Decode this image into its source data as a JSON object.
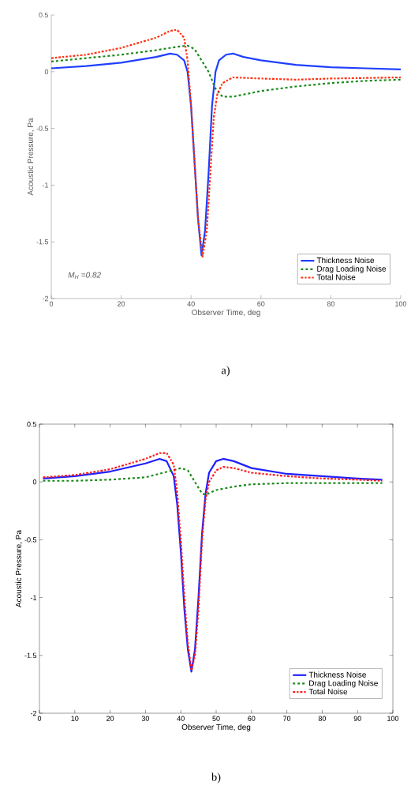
{
  "chart_data": [
    {
      "type": "line",
      "xlabel": "Observer Time, deg",
      "ylabel": "Acoustic Pressure, Pa",
      "xlim": [
        0,
        100
      ],
      "ylim": [
        -2,
        0.5
      ],
      "xticks": [
        0,
        20,
        40,
        60,
        80,
        100
      ],
      "yticks": [
        -2,
        -1.5,
        -1,
        -0.5,
        0,
        0.5
      ],
      "legend": "bottom right",
      "grid": false,
      "annotations": [
        "M$_{H}$ =0.82",
        "a)"
      ],
      "series": [
        {
          "name": "Thickness Noise",
          "color": "#1f3fff",
          "line_style": "solid",
          "x": [
            0,
            10,
            20,
            30,
            34,
            36,
            38,
            39,
            40,
            41,
            42,
            43,
            44,
            45,
            46,
            47,
            48,
            50,
            52,
            55,
            60,
            70,
            80,
            90,
            100
          ],
          "values": [
            0.03,
            0.05,
            0.08,
            0.13,
            0.16,
            0.15,
            0.1,
            0.0,
            -0.3,
            -0.8,
            -1.3,
            -1.62,
            -1.4,
            -0.9,
            -0.3,
            0.0,
            0.1,
            0.15,
            0.16,
            0.13,
            0.1,
            0.06,
            0.04,
            0.03,
            0.02
          ]
        },
        {
          "name": "Drag Loading Noise",
          "color": "#1a8a1a",
          "line_style": "dashed",
          "x": [
            0,
            10,
            20,
            30,
            36,
            39,
            41,
            43,
            45,
            47,
            49,
            52,
            60,
            70,
            80,
            90,
            100
          ],
          "values": [
            0.09,
            0.12,
            0.15,
            0.19,
            0.22,
            0.23,
            0.2,
            0.1,
            0.0,
            -0.15,
            -0.22,
            -0.22,
            -0.17,
            -0.13,
            -0.1,
            -0.08,
            -0.07
          ]
        },
        {
          "name": "Total Noise",
          "color": "#ff3010",
          "line_style": "dashdot",
          "x": [
            0,
            10,
            20,
            30,
            34,
            36,
            38,
            39,
            40,
            41,
            42,
            43.3,
            44.5,
            45.5,
            46.5,
            47.5,
            49,
            52,
            60,
            70,
            80,
            100
          ],
          "values": [
            0.12,
            0.15,
            0.21,
            0.3,
            0.36,
            0.37,
            0.3,
            0.1,
            -0.3,
            -0.8,
            -1.3,
            -1.63,
            -1.4,
            -0.9,
            -0.4,
            -0.2,
            -0.1,
            -0.05,
            -0.06,
            -0.07,
            -0.06,
            -0.05
          ]
        }
      ]
    },
    {
      "type": "line",
      "xlabel": "Observer Time, deg",
      "ylabel": "Acoustic Pressure, Pa",
      "xlim": [
        0,
        100
      ],
      "ylim": [
        -2,
        0.5
      ],
      "xticks": [
        0,
        10,
        20,
        30,
        40,
        50,
        60,
        70,
        80,
        90,
        100
      ],
      "yticks": [
        -2,
        -1.5,
        -1,
        -0.5,
        0,
        0.5
      ],
      "legend": "bottom right",
      "grid": false,
      "annotations": [
        "b)"
      ],
      "series": [
        {
          "name": "Thickness Noise",
          "color": "#1f1fff",
          "line_style": "solid",
          "x": [
            1,
            10,
            20,
            30,
            34,
            36,
            38,
            39,
            40,
            41,
            42,
            43,
            44,
            45,
            46,
            47,
            48,
            50,
            52,
            55,
            60,
            70,
            80,
            90,
            97
          ],
          "values": [
            0.03,
            0.05,
            0.09,
            0.16,
            0.2,
            0.18,
            0.05,
            -0.2,
            -0.6,
            -1.1,
            -1.45,
            -1.64,
            -1.45,
            -1.0,
            -0.45,
            -0.1,
            0.08,
            0.18,
            0.2,
            0.18,
            0.12,
            0.07,
            0.05,
            0.03,
            0.02
          ]
        },
        {
          "name": "Drag Loading Noise",
          "color": "#1a8a1a",
          "line_style": "dashed",
          "x": [
            1,
            10,
            20,
            30,
            35,
            39,
            40,
            42,
            44,
            46,
            47,
            50,
            55,
            60,
            70,
            80,
            97
          ],
          "values": [
            0.01,
            0.01,
            0.02,
            0.04,
            0.08,
            0.11,
            0.12,
            0.1,
            0.0,
            -0.1,
            -0.11,
            -0.07,
            -0.04,
            -0.02,
            -0.01,
            -0.01,
            -0.01
          ]
        },
        {
          "name": "Total Noise",
          "color": "#ff1a1a",
          "line_style": "dashdot",
          "x": [
            1,
            10,
            20,
            30,
            34,
            36,
            38,
            39,
            40,
            41,
            42,
            43,
            44,
            45,
            46,
            47,
            48,
            50,
            52,
            55,
            60,
            70,
            80,
            90,
            97
          ],
          "values": [
            0.04,
            0.06,
            0.11,
            0.2,
            0.25,
            0.25,
            0.15,
            -0.1,
            -0.5,
            -1.0,
            -1.4,
            -1.63,
            -1.5,
            -1.1,
            -0.5,
            -0.15,
            0.0,
            0.1,
            0.13,
            0.12,
            0.08,
            0.05,
            0.03,
            0.02,
            0.01
          ]
        }
      ]
    }
  ]
}
